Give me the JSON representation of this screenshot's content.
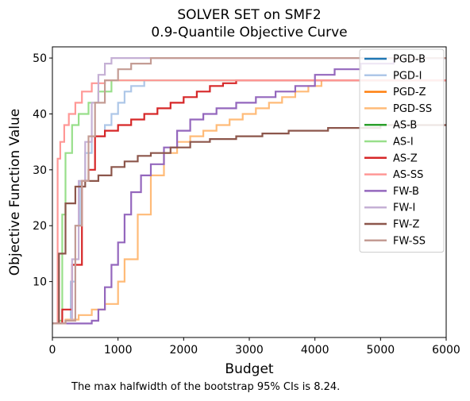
{
  "chart_data": {
    "type": "line",
    "title": "SOLVER SET on SMF2",
    "subtitle": "0.9-Quantile Objective Curve",
    "xlabel": "Budget",
    "ylabel": "Objective Function Value",
    "xlim": [
      0,
      6000
    ],
    "ylim": [
      0,
      52
    ],
    "xticks": [
      "0",
      "1000",
      "2000",
      "3000",
      "4000",
      "5000",
      "6000"
    ],
    "yticks": [
      "10",
      "20",
      "30",
      "40",
      "50"
    ],
    "legend_position": "top-right",
    "caption": "The max halfwidth of the bootstrap 95% CIs is 8.24.",
    "series": [
      {
        "name": "PGD-B",
        "color": "#1f77b4",
        "points": [
          [
            0,
            2.5
          ]
        ]
      },
      {
        "name": "PGD-I",
        "color": "#aec7e8",
        "points": [
          [
            0,
            2.5
          ],
          [
            200,
            3
          ],
          [
            280,
            10
          ],
          [
            350,
            20
          ],
          [
            420,
            28
          ],
          [
            500,
            33
          ],
          [
            600,
            36
          ],
          [
            800,
            38
          ],
          [
            900,
            40
          ],
          [
            1000,
            42
          ],
          [
            1100,
            44
          ],
          [
            1200,
            45
          ],
          [
            1400,
            46
          ],
          [
            6000,
            46
          ]
        ]
      },
      {
        "name": "PGD-Z",
        "color": "#ff7f0e",
        "points": [
          [
            0,
            2.5
          ]
        ]
      },
      {
        "name": "PGD-SS",
        "color": "#ffbb78",
        "points": [
          [
            0,
            2.5
          ],
          [
            200,
            3.2
          ],
          [
            400,
            4
          ],
          [
            600,
            5
          ],
          [
            800,
            6
          ],
          [
            1000,
            10
          ],
          [
            1100,
            14
          ],
          [
            1300,
            22
          ],
          [
            1500,
            29
          ],
          [
            1700,
            33
          ],
          [
            1900,
            35
          ],
          [
            2100,
            36
          ],
          [
            2300,
            37
          ],
          [
            2500,
            38
          ],
          [
            2700,
            39
          ],
          [
            2900,
            40
          ],
          [
            3100,
            41
          ],
          [
            3300,
            42
          ],
          [
            3500,
            43
          ],
          [
            3700,
            44
          ],
          [
            3900,
            45
          ],
          [
            4100,
            46
          ],
          [
            6000,
            46
          ]
        ]
      },
      {
        "name": "AS-B",
        "color": "#2ca02c",
        "points": [
          [
            0,
            2.5
          ]
        ]
      },
      {
        "name": "AS-I",
        "color": "#98df8a",
        "points": [
          [
            0,
            2.5
          ],
          [
            100,
            3
          ],
          [
            150,
            22
          ],
          [
            200,
            33
          ],
          [
            300,
            38
          ],
          [
            400,
            40
          ],
          [
            550,
            42
          ],
          [
            700,
            44
          ],
          [
            900,
            46
          ],
          [
            6000,
            46
          ]
        ]
      },
      {
        "name": "AS-Z",
        "color": "#d62728",
        "points": [
          [
            0,
            2.5
          ],
          [
            150,
            5
          ],
          [
            300,
            13
          ],
          [
            450,
            28
          ],
          [
            550,
            30
          ],
          [
            650,
            36
          ],
          [
            800,
            37
          ],
          [
            1000,
            38
          ],
          [
            1200,
            39
          ],
          [
            1400,
            40
          ],
          [
            1600,
            41
          ],
          [
            1800,
            42
          ],
          [
            2000,
            43
          ],
          [
            2200,
            44
          ],
          [
            2400,
            45
          ],
          [
            2600,
            45.5
          ],
          [
            2800,
            46
          ],
          [
            6000,
            46
          ]
        ]
      },
      {
        "name": "AS-SS",
        "color": "#ff9896",
        "points": [
          [
            0,
            2.5
          ],
          [
            80,
            32
          ],
          [
            120,
            35
          ],
          [
            180,
            38
          ],
          [
            250,
            40
          ],
          [
            350,
            42
          ],
          [
            450,
            44
          ],
          [
            600,
            45.5
          ],
          [
            800,
            46
          ],
          [
            6000,
            46
          ]
        ]
      },
      {
        "name": "FW-B",
        "color": "#9467bd",
        "points": [
          [
            0,
            2.5
          ],
          [
            400,
            2.5
          ],
          [
            600,
            3
          ],
          [
            700,
            5
          ],
          [
            800,
            9
          ],
          [
            900,
            13
          ],
          [
            1000,
            17
          ],
          [
            1100,
            22
          ],
          [
            1200,
            26
          ],
          [
            1350,
            29
          ],
          [
            1500,
            31
          ],
          [
            1700,
            34
          ],
          [
            1900,
            37
          ],
          [
            2100,
            39
          ],
          [
            2300,
            40
          ],
          [
            2500,
            41
          ],
          [
            2800,
            42
          ],
          [
            3100,
            43
          ],
          [
            3400,
            44
          ],
          [
            3700,
            45
          ],
          [
            4000,
            47
          ],
          [
            4300,
            48
          ],
          [
            4700,
            49
          ],
          [
            5200,
            50
          ],
          [
            6000,
            50
          ]
        ]
      },
      {
        "name": "FW-I",
        "color": "#c5b0d5",
        "points": [
          [
            0,
            2.5
          ],
          [
            200,
            3
          ],
          [
            300,
            14
          ],
          [
            400,
            28
          ],
          [
            500,
            35
          ],
          [
            600,
            42
          ],
          [
            700,
            47
          ],
          [
            800,
            49
          ],
          [
            900,
            50
          ],
          [
            6000,
            50
          ]
        ]
      },
      {
        "name": "FW-Z",
        "color": "#8c564b",
        "points": [
          [
            0,
            2.5
          ],
          [
            100,
            15
          ],
          [
            200,
            24
          ],
          [
            350,
            27
          ],
          [
            500,
            28
          ],
          [
            700,
            29
          ],
          [
            900,
            30.5
          ],
          [
            1100,
            31.5
          ],
          [
            1300,
            32.5
          ],
          [
            1500,
            33
          ],
          [
            1800,
            34
          ],
          [
            2100,
            35
          ],
          [
            2400,
            35.5
          ],
          [
            2800,
            36
          ],
          [
            3200,
            36.5
          ],
          [
            3600,
            37
          ],
          [
            4200,
            37.5
          ],
          [
            5000,
            38
          ],
          [
            6000,
            38
          ]
        ]
      },
      {
        "name": "FW-SS",
        "color": "#c49c94",
        "points": [
          [
            0,
            2.5
          ],
          [
            200,
            3
          ],
          [
            350,
            20
          ],
          [
            450,
            28
          ],
          [
            550,
            36
          ],
          [
            650,
            42
          ],
          [
            800,
            46
          ],
          [
            1000,
            48
          ],
          [
            1200,
            49
          ],
          [
            1500,
            50
          ],
          [
            6000,
            50
          ]
        ]
      }
    ]
  }
}
